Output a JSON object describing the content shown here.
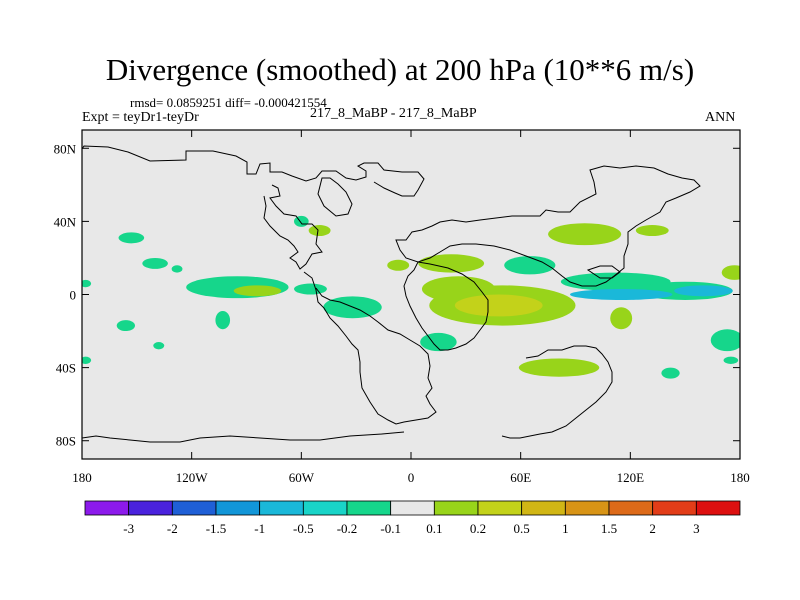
{
  "chart_data": {
    "type": "heatmap",
    "title": "Divergence (smoothed) at 200 hPa (10**6 m/s)",
    "stats_line": "rmsd= 0.0859251 diff= -0.000421554",
    "experiment_label": "Expt = teyDr1-teyDr",
    "case_label": "217_8_MaBP - 217_8_MaBP",
    "season": "ANN",
    "xlim": [
      -180,
      180
    ],
    "ylim": [
      -90,
      90
    ],
    "x_ticks": [
      {
        "value": -180,
        "label": "180"
      },
      {
        "value": -120,
        "label": "120W"
      },
      {
        "value": -60,
        "label": "60W"
      },
      {
        "value": 0,
        "label": "0"
      },
      {
        "value": 60,
        "label": "60E"
      },
      {
        "value": 120,
        "label": "120E"
      },
      {
        "value": 180,
        "label": "180"
      }
    ],
    "y_ticks": [
      {
        "value": 80,
        "label": "80N"
      },
      {
        "value": 40,
        "label": "40N"
      },
      {
        "value": 0,
        "label": "0"
      },
      {
        "value": -40,
        "label": "40S"
      },
      {
        "value": -80,
        "label": "80S"
      }
    ],
    "colorbar": {
      "colors": [
        "#8c1aeb",
        "#4a22dd",
        "#1f5fd6",
        "#1296d8",
        "#1ab8d9",
        "#19d4c8",
        "#16d68b",
        "#e8e8e8",
        "#98d41a",
        "#c3d21a",
        "#d1b615",
        "#d89416",
        "#dd6a19",
        "#e23d18",
        "#dd1010"
      ],
      "boundaries": [
        "-3",
        "-2",
        "-1.5",
        "-1",
        "-0.5",
        "-0.2",
        "-0.1",
        "0.1",
        "0.2",
        "0.5",
        "1",
        "1.5",
        "2",
        "3"
      ]
    },
    "features": [
      {
        "lon": -153,
        "lat": 31,
        "rlon": 7,
        "rlat": 3,
        "level": 6
      },
      {
        "lon": -140,
        "lat": 17,
        "rlon": 7,
        "rlat": 3,
        "level": 6
      },
      {
        "lon": -128,
        "lat": 14,
        "rlon": 3,
        "rlat": 2,
        "level": 6
      },
      {
        "lon": -95,
        "lat": 4,
        "rlon": 28,
        "rlat": 6,
        "level": 6
      },
      {
        "lon": -84,
        "lat": 2,
        "rlon": 13,
        "rlat": 3,
        "level": 8
      },
      {
        "lon": -103,
        "lat": -14,
        "rlon": 4,
        "rlat": 5,
        "level": 6
      },
      {
        "lon": -156,
        "lat": -17,
        "rlon": 5,
        "rlat": 3,
        "level": 6
      },
      {
        "lon": -138,
        "lat": -28,
        "rlon": 3,
        "rlat": 2,
        "level": 6
      },
      {
        "lon": -55,
        "lat": 3,
        "rlon": 9,
        "rlat": 3,
        "level": 6
      },
      {
        "lon": -32,
        "lat": -7,
        "rlon": 16,
        "rlat": 6,
        "level": 6
      },
      {
        "lon": -50,
        "lat": 35,
        "rlon": 6,
        "rlat": 3,
        "level": 8
      },
      {
        "lon": -60,
        "lat": 40,
        "rlon": 4,
        "rlat": 3,
        "level": 6
      },
      {
        "lon": -7,
        "lat": 16,
        "rlon": 6,
        "rlat": 3,
        "level": 8
      },
      {
        "lon": 22,
        "lat": 17,
        "rlon": 18,
        "rlat": 5,
        "level": 8
      },
      {
        "lon": 26,
        "lat": 3,
        "rlon": 20,
        "rlat": 7,
        "level": 8
      },
      {
        "lon": 50,
        "lat": -6,
        "rlon": 40,
        "rlat": 11,
        "level": 8
      },
      {
        "lon": 48,
        "lat": -6,
        "rlon": 24,
        "rlat": 6,
        "level": 9
      },
      {
        "lon": 15,
        "lat": -26,
        "rlon": 10,
        "rlat": 5,
        "level": 6
      },
      {
        "lon": 65,
        "lat": 16,
        "rlon": 14,
        "rlat": 5,
        "level": 6
      },
      {
        "lon": 95,
        "lat": 33,
        "rlon": 20,
        "rlat": 6,
        "level": 8
      },
      {
        "lon": 132,
        "lat": 35,
        "rlon": 9,
        "rlat": 3,
        "level": 8
      },
      {
        "lon": 112,
        "lat": 7,
        "rlon": 30,
        "rlat": 5,
        "level": 6
      },
      {
        "lon": 150,
        "lat": 2,
        "rlon": 26,
        "rlat": 5,
        "level": 6
      },
      {
        "lon": 115,
        "lat": 0,
        "rlon": 28,
        "rlat": 3,
        "level": 4
      },
      {
        "lon": 160,
        "lat": 2,
        "rlon": 16,
        "rlat": 3,
        "level": 4
      },
      {
        "lon": 115,
        "lat": -13,
        "rlon": 6,
        "rlat": 6,
        "level": 8
      },
      {
        "lon": 81,
        "lat": -40,
        "rlon": 22,
        "rlat": 5,
        "level": 8
      },
      {
        "lon": 177,
        "lat": 12,
        "rlon": 7,
        "rlat": 4,
        "level": 8
      },
      {
        "lon": 173,
        "lat": -25,
        "rlon": 9,
        "rlat": 6,
        "level": 6
      },
      {
        "lon": 142,
        "lat": -43,
        "rlon": 5,
        "rlat": 3,
        "level": 6
      },
      {
        "lon": -178,
        "lat": 6,
        "rlon": 3,
        "rlat": 2,
        "level": 6
      },
      {
        "lon": -178,
        "lat": -36,
        "rlon": 3,
        "rlat": 2,
        "level": 6
      },
      {
        "lon": 175,
        "lat": -36,
        "rlon": 4,
        "rlat": 2,
        "level": 6
      }
    ]
  }
}
